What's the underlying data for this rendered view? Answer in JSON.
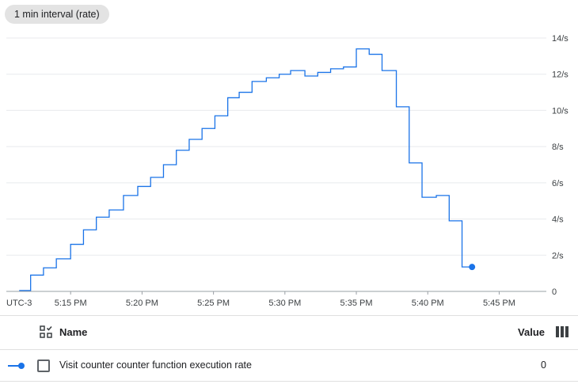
{
  "filter_chip": {
    "label": "1 min interval (rate)"
  },
  "chart_data": {
    "type": "line",
    "timezone_label": "UTC-3",
    "x_ticks": [
      "5:15 PM",
      "5:20 PM",
      "5:25 PM",
      "5:30 PM",
      "5:35 PM",
      "5:40 PM",
      "5:45 PM"
    ],
    "x_tick_minutes": [
      15,
      20,
      25,
      30,
      35,
      40,
      45
    ],
    "y_ticks": [
      "0",
      "2/s",
      "4/s",
      "6/s",
      "8/s",
      "10/s",
      "12/s",
      "14/s"
    ],
    "y_tick_values": [
      0,
      2,
      4,
      6,
      8,
      10,
      12,
      14
    ],
    "xlim_minutes": [
      10.5,
      48.3
    ],
    "ylim": [
      0,
      14
    ],
    "grid": true,
    "line_color": "#1a73e8",
    "series": [
      {
        "name": "Visit counter counter function execution rate",
        "step": true,
        "points": [
          [
            11.4,
            0.05
          ],
          [
            12.2,
            0.9
          ],
          [
            13.1,
            1.3
          ],
          [
            14.0,
            1.8
          ],
          [
            15.0,
            2.6
          ],
          [
            15.9,
            3.4
          ],
          [
            16.8,
            4.1
          ],
          [
            17.7,
            4.5
          ],
          [
            18.7,
            5.3
          ],
          [
            19.7,
            5.8
          ],
          [
            20.6,
            6.3
          ],
          [
            21.5,
            7.0
          ],
          [
            22.4,
            7.8
          ],
          [
            23.3,
            8.4
          ],
          [
            24.2,
            9.0
          ],
          [
            25.1,
            9.7
          ],
          [
            26.0,
            10.7
          ],
          [
            26.8,
            11.0
          ],
          [
            27.7,
            11.6
          ],
          [
            28.7,
            11.8
          ],
          [
            29.6,
            12.0
          ],
          [
            30.4,
            12.2
          ],
          [
            31.4,
            11.9
          ],
          [
            32.3,
            12.1
          ],
          [
            33.2,
            12.3
          ],
          [
            34.1,
            12.4
          ],
          [
            35.0,
            13.4
          ],
          [
            35.9,
            13.1
          ],
          [
            36.8,
            12.2
          ],
          [
            37.8,
            10.2
          ],
          [
            38.7,
            7.1
          ],
          [
            39.6,
            5.2
          ],
          [
            40.6,
            5.3
          ],
          [
            41.5,
            3.9
          ],
          [
            42.4,
            1.35
          ],
          [
            43.1,
            1.35
          ]
        ],
        "endpoint": [
          43.1,
          1.35
        ]
      }
    ]
  },
  "legend": {
    "name_header": "Name",
    "value_header": "Value",
    "rows": [
      {
        "name": "Visit counter counter function execution rate",
        "value": "0"
      }
    ]
  }
}
